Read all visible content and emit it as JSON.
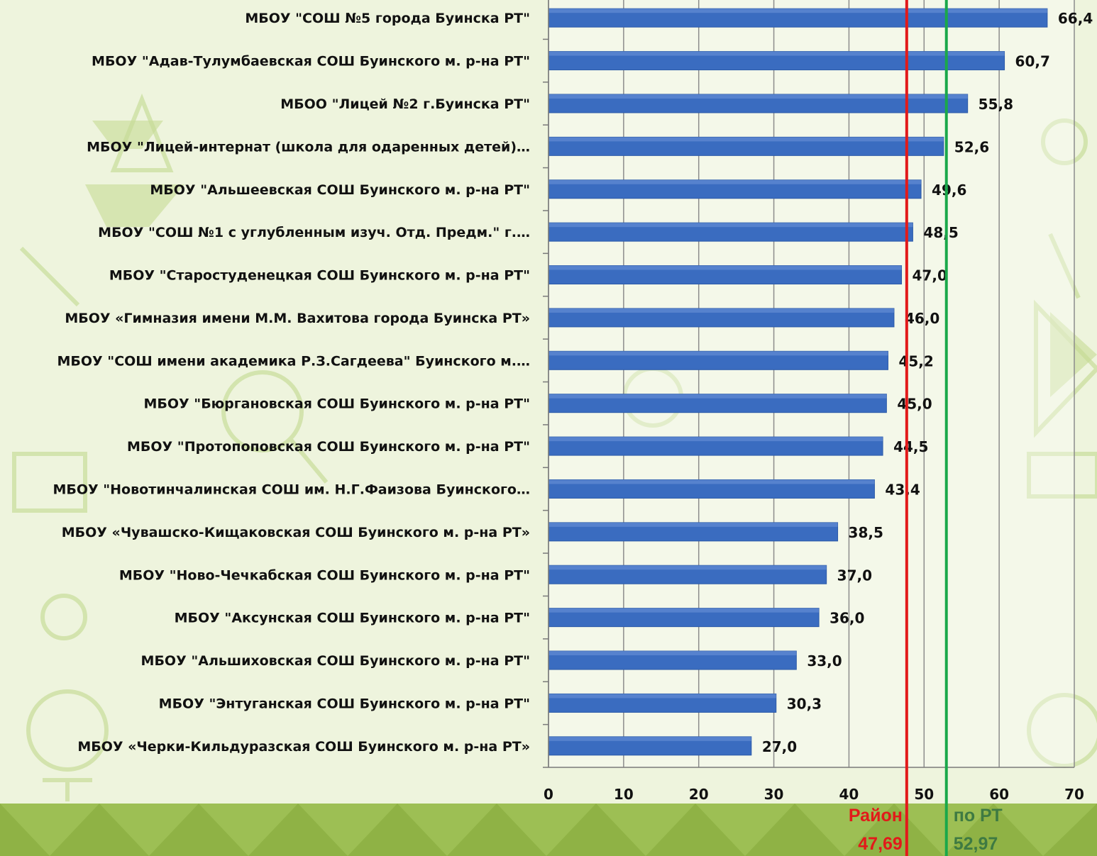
{
  "chart_data": {
    "type": "bar",
    "orientation": "horizontal",
    "categories": [
      "МБОУ \"СОШ №5 города Буинска РТ\"",
      "МБОУ \"Адав-Тулумбаевская СОШ Буинского м. р-на РТ\"",
      "МБОО \"Лицей №2 г.Буинска РТ\"",
      "МБОУ \"Лицей-интернат (школа для одаренных детей)…",
      "МБОУ \"Альшеевская СОШ Буинского м. р-на РТ\"",
      "МБОУ \"СОШ №1 с углубленным изуч. Отд. Предм.\" г.…",
      "МБОУ \"Старостуденецкая СОШ Буинского м. р-на РТ\"",
      "МБОУ «Гимназия имени М.М. Вахитова города Буинска РТ»",
      "МБОУ \"СОШ имени академика Р.З.Сагдеева\" Буинского м.…",
      "МБОУ \"Бюргановская СОШ Буинского м. р-на РТ\"",
      "МБОУ \"Протопоповская СОШ Буинского м. р-на РТ\"",
      "МБОУ \"Новотинчалинская СОШ им. Н.Г.Фаизова Буинского…",
      "МБОУ «Чувашско-Кищаковская СОШ Буинского м. р-на РТ»",
      "МБОУ \"Ново-Чечкабская СОШ Буинского м. р-на РТ\"",
      "МБОУ \"Аксунская СОШ Буинского м. р-на РТ\"",
      "МБОУ \"Альшиховская СОШ Буинского м. р-на РТ\"",
      "МБОУ \"Энтуганская СОШ Буинского м. р-на РТ\"",
      "МБОУ «Черки-Кильдуразская СОШ Буинского м. р-на РТ»"
    ],
    "values": [
      66.4,
      60.7,
      55.8,
      52.6,
      49.6,
      48.5,
      47.0,
      46.0,
      45.2,
      45.0,
      44.5,
      43.4,
      38.5,
      37.0,
      36.0,
      33.0,
      30.3,
      27.0
    ],
    "value_labels": [
      "66,4",
      "60,7",
      "55,8",
      "52,6",
      "49,6",
      "48,5",
      "47,0",
      "46,0",
      "45,2",
      "45,0",
      "44,5",
      "43,4",
      "38,5",
      "37,0",
      "36,0",
      "33,0",
      "30,3",
      "27,0"
    ],
    "xlim": [
      0,
      70
    ],
    "xticks": [
      0,
      10,
      20,
      30,
      40,
      50,
      60,
      70
    ],
    "grid": true,
    "bar_color": "#3a6cc0",
    "reference_lines": [
      {
        "name": "Район",
        "value": 47.69,
        "value_label": "47,69",
        "color": "#e21a1a"
      },
      {
        "name": "по РТ",
        "value": 52.97,
        "value_label": "52,97",
        "color": "#1aa84a"
      }
    ]
  },
  "colors": {
    "background": "#e9f1d6",
    "decoration": "#b5d07a",
    "footer_band": "#9dbf54"
  }
}
